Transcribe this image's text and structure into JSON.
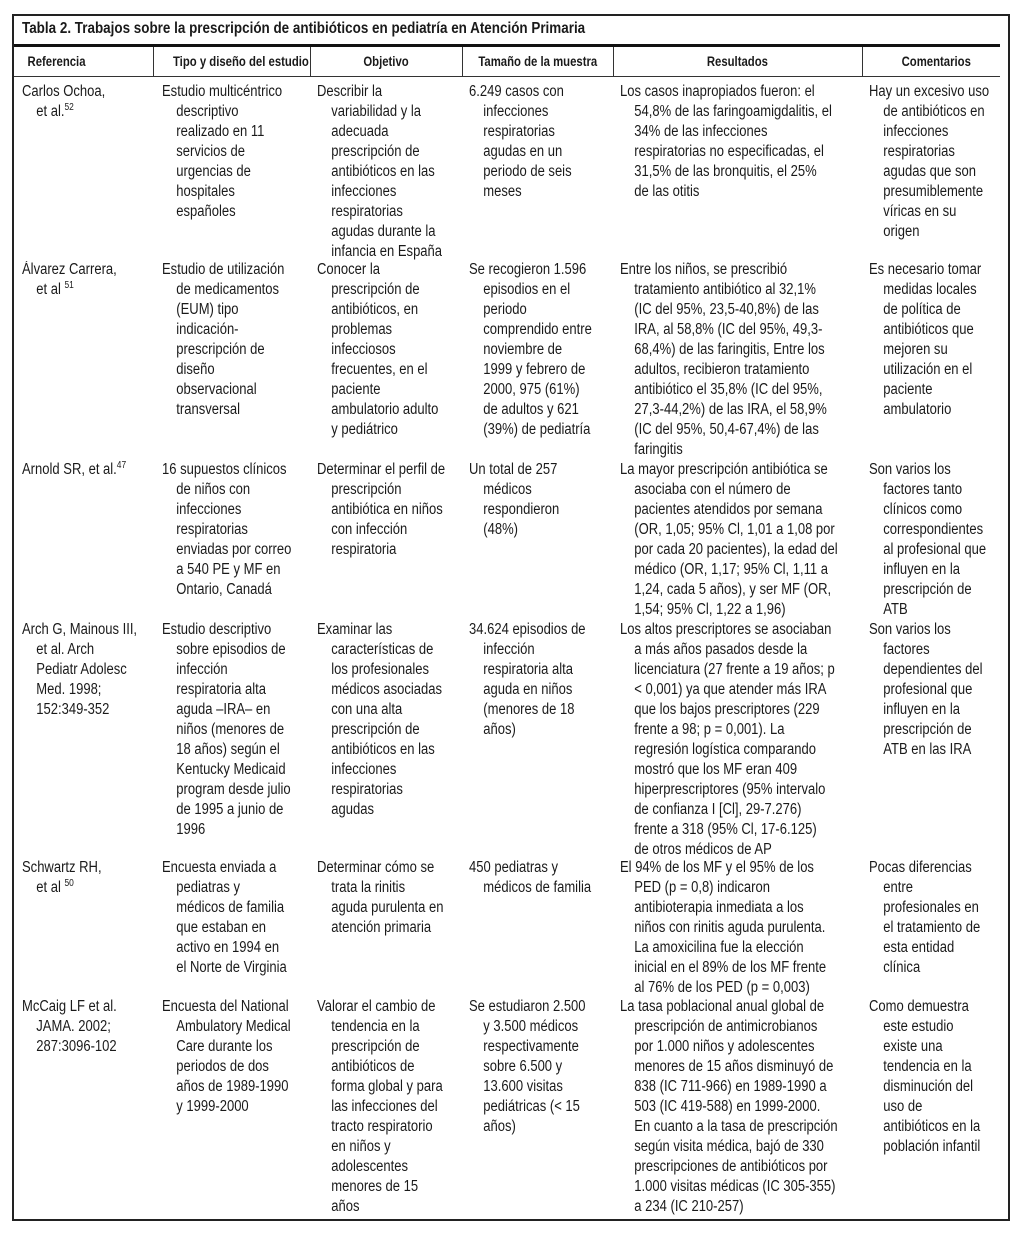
{
  "title": "Tabla 2. Trabajos sobre la prescripción de antibióticos en pediatría en Atención Primaria",
  "headers": [
    "Referencia",
    "Tipo y diseño del estudio",
    "Objetivo",
    "Tamaño de la muestra",
    "Resultados",
    "Comentarios"
  ],
  "rows": [
    {
      "ref": [
        {
          "t": "Carlos Ochoa,"
        },
        {
          "t": "et al.",
          "sup": "52"
        }
      ],
      "tipo": [
        "Estudio multicéntrico",
        "descriptivo",
        "realizado en 11",
        "servicios de",
        "urgencias de",
        "hospitales",
        "españoles"
      ],
      "objetivo": [
        "Describir la",
        "variabilidad y la",
        "adecuada",
        "prescripción de",
        "antibióticos en las",
        "infecciones",
        "respiratorias",
        "agudas durante la",
        "infancia en España"
      ],
      "muestra": [
        "6.249 casos con",
        "infecciones",
        "respiratorias",
        "agudas en un",
        "periodo de seis",
        "meses"
      ],
      "resultados": [
        "Los casos inapropiados fueron: el",
        "54,8% de las faringoamigdalitis, el",
        "34% de las infecciones",
        "respiratorias no especificadas, el",
        "31,5% de las bronquitis, el 25%",
        "de las otitis"
      ],
      "comentarios": [
        "Hay un excesivo uso",
        "de antibióticos en",
        "infecciones",
        "respiratorias",
        "agudas que son",
        "presumiblemente",
        "víricas en su",
        "origen"
      ]
    },
    {
      "ref": [
        {
          "t": "Álvarez Carrera,"
        },
        {
          "t": "et al ",
          "sup": "51"
        }
      ],
      "tipo": [
        "Estudio de utilización",
        "de medicamentos",
        "(EUM) tipo",
        "indicación-",
        "prescripción de",
        "diseño",
        "observacional",
        "transversal"
      ],
      "objetivo": [
        "Conocer la",
        "prescripción de",
        "antibióticos, en",
        "problemas",
        "infecciosos",
        "frecuentes, en el",
        "paciente",
        "ambulatorio adulto",
        "y pediátrico"
      ],
      "muestra": [
        "Se recogieron 1.596",
        "episodios en el",
        "periodo",
        "comprendido entre",
        "noviembre de",
        "1999 y febrero de",
        "2000, 975 (61%)",
        "de adultos y 621",
        "(39%) de pediatría"
      ],
      "resultados": [
        "Entre los niños, se prescribió",
        "tratamiento antibiótico al 32,1%",
        "(IC del 95%, 23,5-40,8%) de las",
        "IRA, al 58,8% (IC del 95%, 49,3-",
        "68,4%) de las faringitis, Entre los",
        "adultos, recibieron tratamiento",
        "antibiótico el 35,8% (IC del 95%,",
        "27,3-44,2%) de las IRA, el 58,9%",
        "(IC del 95%, 50,4-67,4%) de las",
        "faringitis"
      ],
      "comentarios": [
        "Es necesario tomar",
        "medidas locales",
        "de política de",
        "antibióticos que",
        "mejoren su",
        "utilización en el",
        "paciente",
        "ambulatorio"
      ]
    },
    {
      "ref": [
        {
          "t": "Arnold SR, et al.",
          "sup": "47"
        }
      ],
      "tipo": [
        "16 supuestos clínicos",
        "de niños con",
        "infecciones",
        "respiratorias",
        "enviadas por correo",
        "a 540 PE y MF en",
        "Ontario, Canadá"
      ],
      "objetivo": [
        "Determinar el perfil de",
        "prescripción",
        "antibiótica en niños",
        "con infección",
        "respiratoria"
      ],
      "muestra": [
        "Un total de 257",
        "médicos",
        "respondieron",
        "(48%)"
      ],
      "resultados": [
        "La mayor prescripción antibiótica se",
        "asociaba con el número de",
        "pacientes atendidos por semana",
        "(OR, 1,05; 95% Cl, 1,01 a 1,08 por",
        "por cada 20 pacientes), la edad del",
        "médico (OR, 1,17; 95% Cl, 1,11 a",
        "1,24, cada 5 años), y ser MF (OR,",
        "1,54; 95% Cl, 1,22 a 1,96)"
      ],
      "comentarios": [
        "Son varios los",
        "factores tanto",
        "clínicos como",
        "correspondientes",
        "al profesional que",
        "influyen en la",
        "prescripción de",
        "ATB"
      ]
    },
    {
      "ref": [
        {
          "t": "Arch G, Mainous III,"
        },
        {
          "t": "et al. Arch"
        },
        {
          "t": "Pediatr Adolesc"
        },
        {
          "t": "Med. 1998;"
        },
        {
          "t": "152:349-352"
        }
      ],
      "tipo": [
        "Estudio descriptivo",
        "sobre episodios de",
        "infección",
        "respiratoria alta",
        "aguda –IRA– en",
        "niños (menores de",
        "18 años) según el",
        "Kentucky Medicaid",
        "program desde julio",
        "de 1995 a junio de",
        "1996"
      ],
      "objetivo": [
        "Examinar las",
        "características de",
        "los profesionales",
        "médicos asociadas",
        "con una alta",
        "prescripción de",
        "antibióticos en las",
        "infecciones",
        "respiratorias",
        "agudas"
      ],
      "muestra": [
        "34.624 episodios de",
        "infección",
        "respiratoria alta",
        "aguda en niños",
        "(menores de 18",
        "años)"
      ],
      "resultados": [
        "Los altos prescriptores se asociaban",
        "a más años pasados desde la",
        "licenciatura (27 frente a 19 años; p",
        "< 0,001) ya que atender más IRA",
        "que los bajos prescriptores (229",
        "frente a 98; p = 0,001). La",
        "regresión logística comparando",
        "mostró que los MF eran 409",
        "hiperprescriptores (95% intervalo",
        "de confianza I [Cl], 29-7.276)",
        "frente a 318 (95% Cl, 17-6.125)",
        "de otros médicos de AP"
      ],
      "comentarios": [
        "Son varios los",
        "factores",
        "dependientes del",
        "profesional que",
        "influyen en la",
        "prescripción de",
        "ATB en las IRA"
      ]
    },
    {
      "ref": [
        {
          "t": "Schwartz RH,"
        },
        {
          "t": "et al ",
          "sup": "50"
        }
      ],
      "tipo": [
        "Encuesta enviada a",
        "pediatras y",
        "médicos de familia",
        "que estaban en",
        "activo en 1994 en",
        "el Norte de Virginia"
      ],
      "objetivo": [
        "Determinar cómo se",
        "trata la rinitis",
        "aguda purulenta en",
        "atención primaria"
      ],
      "muestra": [
        "450 pediatras y",
        "médicos de familia"
      ],
      "resultados": [
        "El 94% de los MF y el 95% de los",
        "PED (p = 0,8) indicaron",
        "antibioterapia inmediata a los",
        "niños con rinitis aguda purulenta.",
        "La amoxicilina fue la elección",
        "inicial en el 89% de los MF frente",
        "al 76% de los PED (p = 0,003)"
      ],
      "comentarios": [
        "Pocas diferencias",
        "entre",
        "profesionales en",
        "el tratamiento de",
        "esta entidad",
        "clínica"
      ]
    },
    {
      "ref": [
        {
          "t": "McCaig LF et al."
        },
        {
          "t": "JAMA. 2002;"
        },
        {
          "t": "287:3096-102"
        }
      ],
      "tipo": [
        "Encuesta del National",
        "Ambulatory Medical",
        "Care durante los",
        "periodos de dos",
        "años de 1989-1990",
        "y 1999-2000"
      ],
      "objetivo": [
        "Valorar el cambio de",
        "tendencia en la",
        "prescripción de",
        "antibióticos de",
        "forma global y para",
        "las infecciones del",
        "tracto respiratorio",
        "en niños y",
        "adolescentes",
        "menores de 15",
        "años"
      ],
      "muestra": [
        "Se estudiaron 2.500",
        "y 3.500 médicos",
        "respectivamente",
        "sobre 6.500 y",
        "13.600 visitas",
        "pediátricas (< 15",
        "años)"
      ],
      "resultados": [
        "La tasa poblacional anual global de",
        "prescripción de antimicrobianos",
        "por 1.000 niños y adolescentes",
        "menores de 15 años disminuyó de",
        "838 (IC 711-966) en 1989-1990 a",
        "503 (IC 419-588) en 1999-2000.",
        "En cuanto a la tasa de prescripción",
        "según visita médica, bajó de 330",
        "prescripciones de antibióticos por",
        "1.000 visitas médicas (IC 305-355)",
        "a 234 (IC 210-257)"
      ],
      "comentarios": [
        "Como demuestra",
        "este estudio",
        "existe una",
        "tendencia en la",
        "disminución del",
        "uso de",
        "antibióticos en la",
        "población infantil"
      ]
    }
  ]
}
